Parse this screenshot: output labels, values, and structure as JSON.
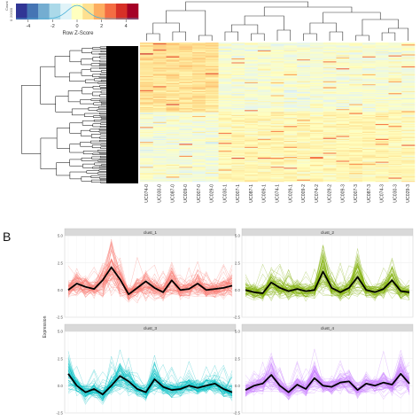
{
  "panel_b_label": "B",
  "chart_data": [
    {
      "type": "heatmap",
      "color_key": {
        "label": "Row Z-Score",
        "count_label": "Count",
        "count_ticks": [
          "20000",
          "0"
        ],
        "ticks": [
          -4,
          -2,
          0,
          2,
          4
        ],
        "range": [
          -5,
          5
        ],
        "colors": [
          "#313695",
          "#4575b4",
          "#74add1",
          "#abd9e9",
          "#e0f3f8",
          "#ffffbf",
          "#fee090",
          "#fdae61",
          "#f46d43",
          "#d73027",
          "#a50026"
        ]
      },
      "columns": [
        "UC074-0",
        "UC030-0",
        "UC087-0",
        "UC009-0",
        "UC007-0",
        "UC029-0",
        "UC030-1",
        "UC007-1",
        "UC087-1",
        "UC009-1",
        "UC074-1",
        "UC029-1",
        "UC009-2",
        "UC074-2",
        "UC029-2",
        "UC009-3",
        "UC007-3",
        "UC087-3",
        "UC074-3",
        "UC030-3",
        "UC029-3"
      ],
      "column_dendrogram": true,
      "row_dendrogram": true
    },
    {
      "type": "line",
      "ylabel": "Expression",
      "x_points": 20,
      "ylim": [
        -2.5,
        5.0
      ],
      "yticks": [
        -2.5,
        0.0,
        2.5,
        5.0
      ],
      "ytick_labels": [
        "-2.5",
        "0.0",
        "2.5",
        "5.0"
      ],
      "facets": [
        {
          "title": "clust_1",
          "color": "#f8766d",
          "mean": [
            0.0,
            0.6,
            0.3,
            0.1,
            0.9,
            2.1,
            1.0,
            -0.4,
            0.2,
            0.8,
            0.2,
            -0.2,
            0.9,
            0.0,
            0.1,
            0.6,
            0.0,
            0.1,
            0.2,
            0.4
          ]
        },
        {
          "title": "clust_2",
          "color": "#7cae00",
          "mean": [
            0.0,
            -0.2,
            -0.3,
            0.7,
            0.2,
            -0.1,
            0.1,
            -0.1,
            0.0,
            1.7,
            0.2,
            -0.2,
            0.2,
            1.2,
            0.0,
            -0.2,
            0.1,
            0.9,
            -0.1,
            -0.2
          ]
        },
        {
          "title": "clust_3",
          "color": "#00bfc4",
          "mean": [
            1.1,
            0.0,
            -0.6,
            -0.3,
            -0.8,
            0.0,
            0.9,
            0.4,
            -0.3,
            -0.6,
            0.6,
            -0.1,
            -0.4,
            -0.3,
            0.0,
            -0.2,
            0.0,
            0.2,
            -0.3,
            -0.6
          ]
        },
        {
          "title": "clust_4",
          "color": "#c77cff",
          "mean": [
            -0.4,
            0.0,
            0.2,
            1.0,
            0.0,
            -0.6,
            0.1,
            -0.3,
            0.7,
            0.0,
            -0.1,
            0.3,
            0.4,
            -0.4,
            0.2,
            0.0,
            0.3,
            0.1,
            1.1,
            0.2
          ]
        }
      ]
    }
  ]
}
